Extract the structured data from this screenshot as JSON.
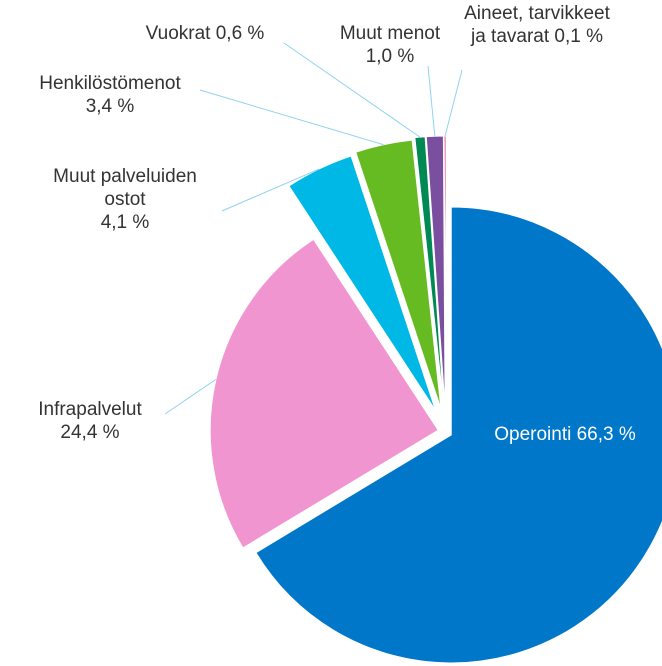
{
  "chart_data": {
    "type": "pie",
    "categories": [
      "Operointi",
      "Infrapalvelut",
      "Muut palveluiden ostot",
      "Henkilöstömenot",
      "Vuokrat",
      "Muut menot",
      "Aineet, tarvikkeet ja tavarat"
    ],
    "values": [
      66.3,
      24.4,
      4.1,
      3.4,
      0.6,
      1.0,
      0.1
    ],
    "value_labels": [
      "66,3 %",
      "24,4 %",
      "4,1 %",
      "3,4 %",
      "0,6 %",
      "1,0 %",
      "0,1 %"
    ],
    "colors": [
      "#0077c8",
      "#f095d0",
      "#00b8e6",
      "#66bb22",
      "#008855",
      "#7b4fa0",
      "#e0105a"
    ]
  }
}
